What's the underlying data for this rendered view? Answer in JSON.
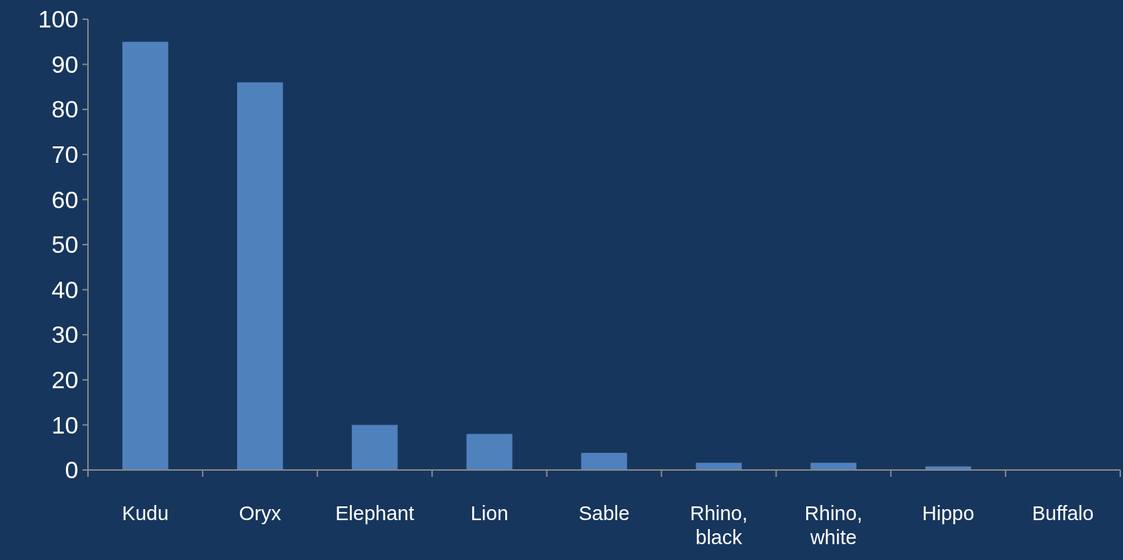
{
  "chart_data": {
    "type": "bar",
    "categories": [
      "Kudu",
      "Oryx",
      "Elephant",
      "Lion",
      "Sable",
      "Rhino, black",
      "Rhino, white",
      "Hippo",
      "Buffalo"
    ],
    "values": [
      95,
      86,
      10,
      8,
      3.8,
      1.6,
      1.6,
      0.8,
      0
    ],
    "color": "#4f81bd",
    "ylim": [
      0,
      100
    ],
    "yticks": [
      0,
      10,
      20,
      30,
      40,
      50,
      60,
      70,
      80,
      90,
      100
    ],
    "grid": false
  }
}
